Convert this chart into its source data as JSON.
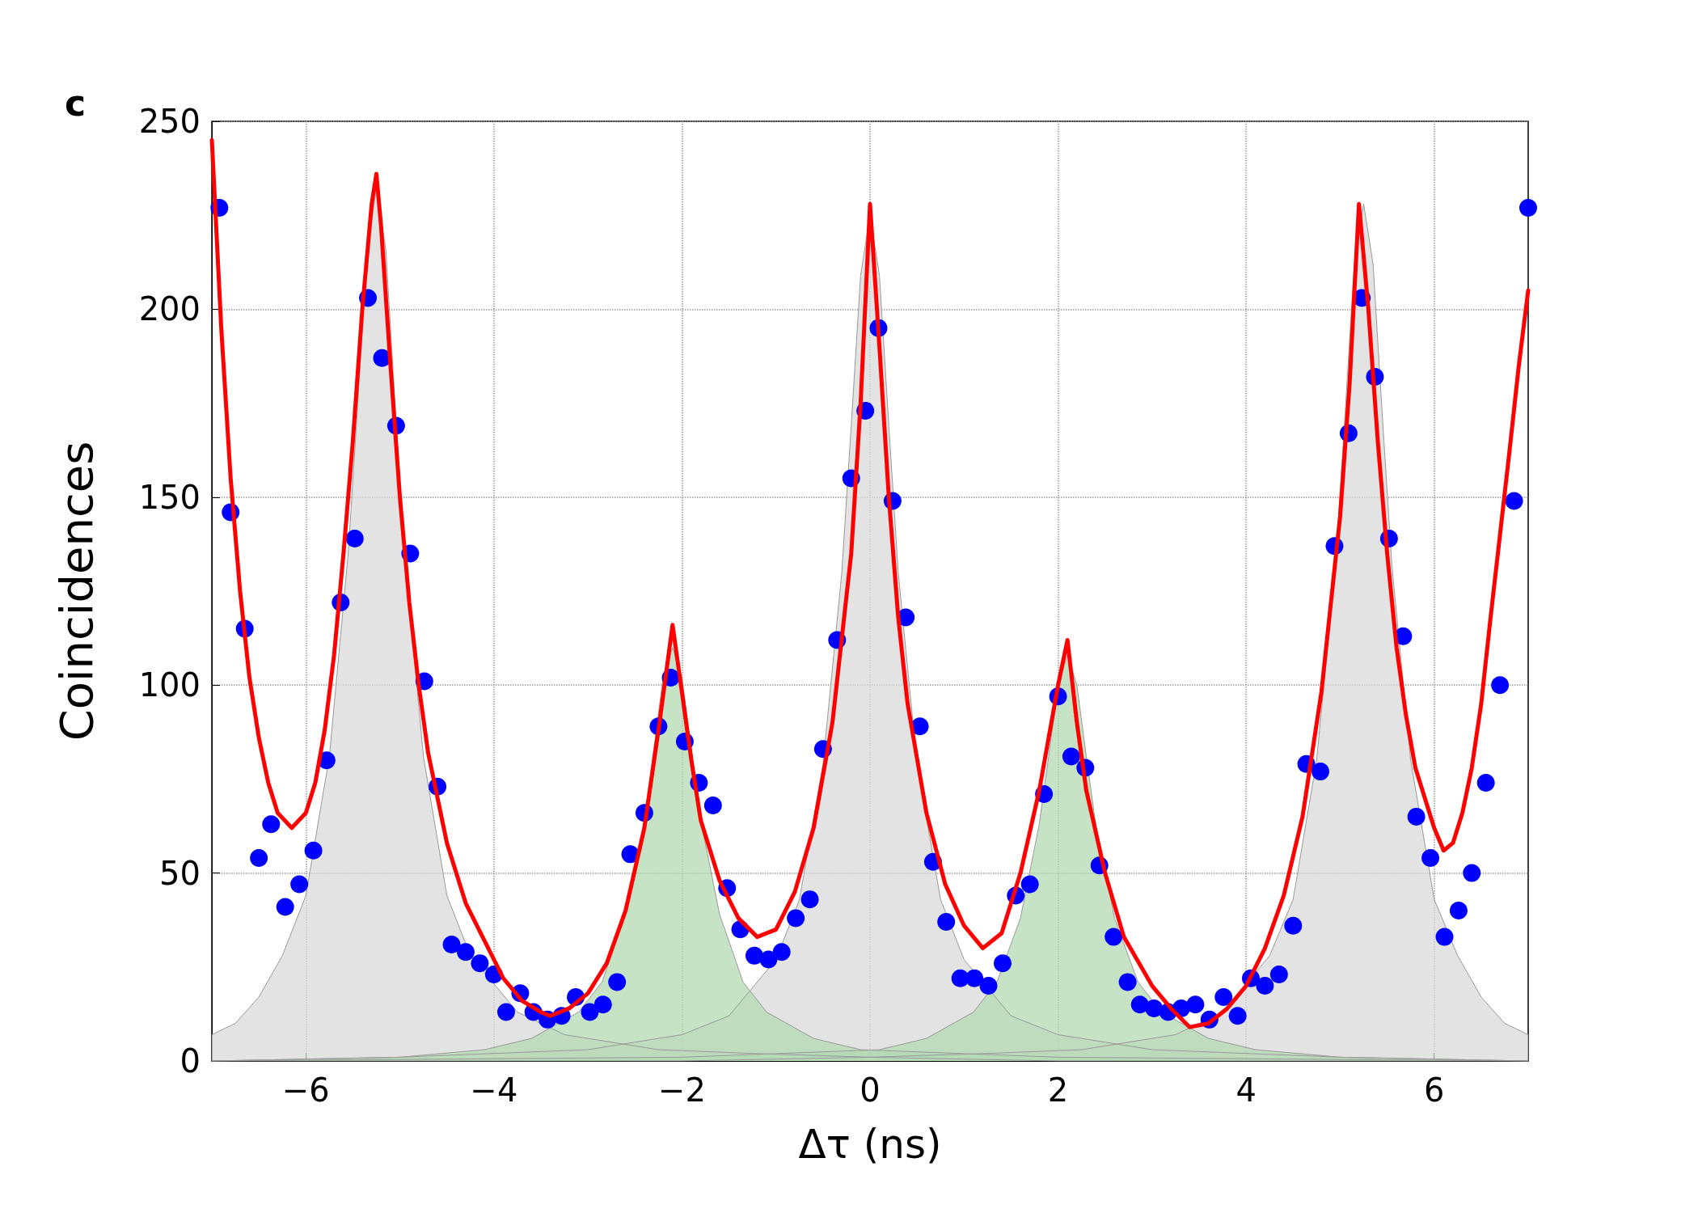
{
  "chart_data": {
    "type": "scatter",
    "title": "c",
    "xlabel": "Δτ (ns)",
    "ylabel": "Coincidences",
    "xlim": [
      -7,
      7
    ],
    "xticks": [
      -6,
      -4,
      -2,
      0,
      2,
      4,
      6
    ],
    "ylim": [
      0,
      250
    ],
    "yticks": [
      0,
      50,
      100,
      150,
      200,
      250
    ],
    "grid": true,
    "series": [
      {
        "type": "area",
        "color": "#d9d9d9",
        "x": [
          -7,
          -6.75,
          -6.5,
          -6.25,
          -6,
          -5.75,
          -5.55,
          -5.45,
          -5.35,
          -5.25,
          -5.15,
          -5.05,
          -4.95,
          -4.75,
          -4.5,
          -4.25,
          -3.75,
          -3.25,
          -2.25,
          -1.25,
          0,
          2,
          7
        ],
        "values": [
          7,
          10,
          17,
          28,
          44,
          81,
          135,
          174,
          216,
          232,
          216,
          174,
          135,
          81,
          44,
          28,
          13,
          7,
          3,
          2,
          1,
          0,
          0
        ]
      },
      {
        "type": "area",
        "color": "#d9d9d9",
        "x": [
          -7,
          -5,
          -3,
          -2,
          -1.5,
          -1,
          -0.75,
          -0.5,
          -0.3,
          -0.2,
          -0.1,
          0,
          0.1,
          0.2,
          0.3,
          0.5,
          0.75,
          1,
          1.5,
          2,
          3,
          5,
          7
        ],
        "values": [
          0,
          1,
          3,
          7,
          12,
          27,
          43,
          79,
          130,
          169,
          209,
          225,
          209,
          169,
          130,
          79,
          43,
          27,
          12,
          7,
          3,
          1,
          0
        ]
      },
      {
        "type": "area",
        "color": "#d9d9d9",
        "x": [
          -7,
          -2,
          0,
          1.25,
          2.25,
          3.25,
          3.75,
          4.25,
          4.5,
          4.75,
          4.95,
          5.05,
          5.15,
          5.25,
          5.35,
          5.45,
          5.55,
          5.75,
          6,
          6.25,
          6.5,
          6.75,
          7
        ],
        "values": [
          0,
          0,
          1,
          2,
          3,
          7,
          13,
          28,
          43,
          80,
          132,
          171,
          212,
          228,
          212,
          171,
          132,
          80,
          43,
          28,
          17,
          10,
          7
        ]
      },
      {
        "type": "area",
        "color": "#b3d9b3",
        "x": [
          -7,
          -5,
          -4.1,
          -3.6,
          -3.1,
          -2.85,
          -2.6,
          -2.4,
          -2.3,
          -2.2,
          -2.1,
          -2,
          -1.9,
          -1.8,
          -1.6,
          -1.35,
          -1.1,
          -0.6,
          -0.1,
          2,
          7
        ],
        "values": [
          0,
          1,
          3,
          6,
          13,
          21,
          39,
          64,
          83,
          102,
          110,
          102,
          83,
          64,
          39,
          21,
          13,
          6,
          3,
          1,
          0
        ]
      },
      {
        "type": "area",
        "color": "#b3d9b3",
        "x": [
          -7,
          -2,
          0.1,
          0.6,
          1.1,
          1.35,
          1.6,
          1.8,
          1.9,
          2,
          2.1,
          2.2,
          2.3,
          2.4,
          2.6,
          2.85,
          3.1,
          3.6,
          4.1,
          5,
          7
        ],
        "values": [
          0,
          1,
          3,
          6,
          13,
          21,
          38,
          63,
          81,
          100,
          108,
          100,
          81,
          63,
          38,
          21,
          13,
          6,
          3,
          1,
          0
        ]
      },
      {
        "type": "line",
        "color": "#ff0000",
        "marker": "none",
        "line_style": "solid",
        "x": [
          -7,
          -6.9,
          -6.8,
          -6.7,
          -6.6,
          -6.5,
          -6.4,
          -6.3,
          -6.15,
          -6,
          -5.9,
          -5.8,
          -5.7,
          -5.6,
          -5.5,
          -5.4,
          -5.3,
          -5.25,
          -5.2,
          -5.1,
          -5,
          -4.9,
          -4.8,
          -4.7,
          -4.5,
          -4.3,
          -4.1,
          -3.9,
          -3.7,
          -3.5,
          -3.4,
          -3.2,
          -3,
          -2.8,
          -2.6,
          -2.4,
          -2.25,
          -2.1,
          -2,
          -1.9,
          -1.8,
          -1.6,
          -1.4,
          -1.2,
          -1,
          -0.8,
          -0.6,
          -0.4,
          -0.2,
          -0.1,
          0,
          0.1,
          0.2,
          0.3,
          0.4,
          0.6,
          0.8,
          1,
          1.2,
          1.4,
          1.6,
          1.8,
          2,
          2.1,
          2.2,
          2.3,
          2.5,
          2.7,
          3,
          3.2,
          3.4,
          3.6,
          3.8,
          4,
          4.2,
          4.4,
          4.6,
          4.8,
          5,
          5.1,
          5.2,
          5.3,
          5.4,
          5.5,
          5.6,
          5.7,
          5.8,
          6,
          6.1,
          6.2,
          6.3,
          6.4,
          6.5,
          6.6,
          6.7,
          6.8,
          6.9,
          7
        ],
        "values": [
          245,
          195,
          155,
          125,
          102,
          86,
          74,
          66,
          62,
          66,
          74,
          88,
          108,
          135,
          165,
          200,
          228,
          236,
          222,
          185,
          150,
          122,
          100,
          82,
          58,
          42,
          32,
          22,
          16,
          13,
          12,
          14,
          18,
          26,
          40,
          62,
          88,
          116,
          98,
          80,
          64,
          48,
          38,
          33,
          35,
          45,
          62,
          90,
          135,
          175,
          228,
          190,
          150,
          118,
          95,
          66,
          47,
          36,
          30,
          34,
          50,
          72,
          100,
          112,
          90,
          72,
          50,
          33,
          20,
          14,
          9,
          10,
          14,
          20,
          30,
          44,
          65,
          98,
          145,
          180,
          228,
          200,
          165,
          135,
          110,
          92,
          78,
          62,
          56,
          58,
          66,
          78,
          95,
          118,
          140,
          162,
          185,
          205
        ]
      },
      {
        "color": "#0000ff",
        "marker": "circle",
        "x": [
          -6.92,
          -6.8,
          -6.65,
          -6.5,
          -6.37,
          -6.22,
          -6.07,
          -5.92,
          -5.78,
          -5.63,
          -5.48,
          -5.34,
          -5.19,
          -5.04,
          -4.89,
          -4.74,
          -4.6,
          -4.45,
          -4.3,
          -4.15,
          -4,
          -3.87,
          -3.72,
          -3.58,
          -3.43,
          -3.28,
          -3.13,
          -2.98,
          -2.84,
          -2.69,
          -2.55,
          -2.4,
          -2.25,
          -2.12,
          -1.97,
          -1.82,
          -1.67,
          -1.52,
          -1.38,
          -1.23,
          -1.08,
          -0.94,
          -0.79,
          -0.64,
          -0.5,
          -0.35,
          -0.2,
          -0.05,
          0.09,
          0.24,
          0.38,
          0.53,
          0.67,
          0.81,
          0.96,
          1.11,
          1.26,
          1.41,
          1.55,
          1.7,
          1.85,
          2,
          2.14,
          2.29,
          2.44,
          2.59,
          2.74,
          2.87,
          3.02,
          3.17,
          3.31,
          3.46,
          3.61,
          3.76,
          3.91,
          4.05,
          4.2,
          4.35,
          4.5,
          4.64,
          4.79,
          4.94,
          5.09,
          5.23,
          5.37,
          5.52,
          5.67,
          5.81,
          5.96,
          6.11,
          6.26,
          6.4,
          6.55,
          6.7,
          6.85,
          7
        ],
        "values": [
          227,
          146,
          115,
          54,
          63,
          41,
          47,
          56,
          80,
          122,
          139,
          203,
          187,
          169,
          135,
          101,
          73,
          31,
          29,
          26,
          23,
          13,
          18,
          13,
          11,
          12,
          17,
          13,
          15,
          21,
          55,
          66,
          89,
          102,
          85,
          74,
          68,
          46,
          35,
          28,
          27,
          29,
          38,
          43,
          83,
          112,
          155,
          173,
          195,
          149,
          118,
          89,
          53,
          37,
          22,
          22,
          20,
          26,
          44,
          47,
          71,
          97,
          81,
          78,
          52,
          33,
          21,
          15,
          14,
          13,
          14,
          15,
          11,
          17,
          12,
          22,
          20,
          23,
          36,
          79,
          77,
          137,
          167,
          203,
          182,
          139,
          113,
          65,
          54,
          33,
          40,
          50,
          74,
          100,
          149,
          227
        ]
      }
    ]
  }
}
